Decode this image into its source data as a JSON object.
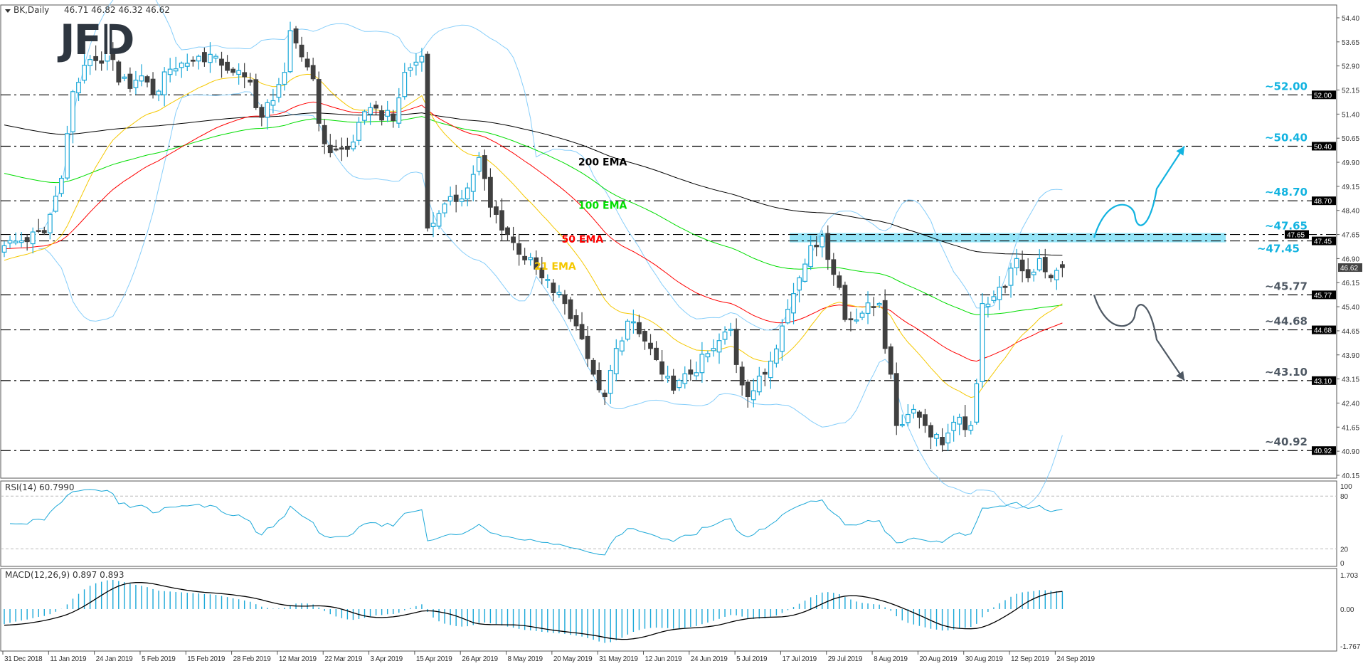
{
  "header": {
    "symbol": "BK,Daily",
    "ohlc": "46.71 46.82 46.32 46.62"
  },
  "logo": "JFD",
  "colors": {
    "bull": "#1ba8d8",
    "bear": "#404040",
    "bollinger": "#87cefa",
    "level_up": "#12b3e0",
    "level_down": "#4f5964",
    "zone": "#94e4f7",
    "rsi": "#1ba8d8",
    "macd_hist": "#1ba8d8",
    "macd_signal": "#000000"
  },
  "chart_data": [
    {
      "type": "candlestick",
      "title": "BK,Daily",
      "ylim": [
        40.15,
        54.4
      ],
      "y_ticks": [
        "54.40",
        "53.65",
        "52.90",
        "52.15",
        "51.40",
        "50.65",
        "49.90",
        "49.15",
        "48.40",
        "47.65",
        "46.90",
        "46.15",
        "45.40",
        "44.65",
        "43.90",
        "43.15",
        "42.40",
        "41.65",
        "40.90",
        "40.15"
      ],
      "x_labels": [
        "31 Dec 2018",
        "11 Jan 2019",
        "24 Jan 2019",
        "5 Feb 2019",
        "15 Feb 2019",
        "28 Feb 2019",
        "12 Mar 2019",
        "22 Mar 2019",
        "3 Apr 2019",
        "15 Apr 2019",
        "26 Apr 2019",
        "8 May 2019",
        "20 May 2019",
        "31 May 2019",
        "12 Jun 2019",
        "24 Jun 2019",
        "5 Jul 2019",
        "17 Jul 2019",
        "29 Jul 2019",
        "8 Aug 2019",
        "20 Aug 2019",
        "30 Aug 2019",
        "12 Sep 2019",
        "24 Sep 2019"
      ],
      "last_bar": {
        "open": 46.71,
        "high": 46.82,
        "low": 46.32,
        "close": 46.62
      },
      "close_path": [
        [
          "2018-12-31",
          47.3
        ],
        [
          "2019-01-09",
          47.7
        ],
        [
          "2019-01-15",
          49.4
        ],
        [
          "2019-01-17",
          52.1
        ],
        [
          "2019-01-22",
          53.1
        ],
        [
          "2019-01-29",
          53.1
        ],
        [
          "2019-01-30",
          52.4
        ],
        [
          "2019-02-06",
          52.4
        ],
        [
          "2019-02-08",
          52.0
        ],
        [
          "2019-02-11",
          52.8
        ],
        [
          "2019-02-18",
          53.2
        ],
        [
          "2019-02-23",
          53.2
        ],
        [
          "2019-02-28",
          52.7
        ],
        [
          "2019-03-04",
          52.4
        ],
        [
          "2019-03-06",
          51.6
        ],
        [
          "2019-03-08",
          51.3
        ],
        [
          "2019-03-13",
          52.7
        ],
        [
          "2019-03-15",
          54.0
        ],
        [
          "2019-03-19",
          52.5
        ],
        [
          "2019-03-20",
          51.3
        ],
        [
          "2019-03-23",
          50.2
        ],
        [
          "2019-03-28",
          50.3
        ],
        [
          "2019-04-03",
          51.6
        ],
        [
          "2019-04-09",
          51.2
        ],
        [
          "2019-04-12",
          52.7
        ],
        [
          "2019-04-16",
          53.2
        ],
        [
          "2019-04-17",
          49.4
        ],
        [
          "2019-04-18",
          47.85
        ],
        [
          "2019-04-21",
          48.3
        ],
        [
          "2019-04-27",
          49.1
        ],
        [
          "2019-05-01",
          50.05
        ],
        [
          "2019-05-04",
          48.5
        ],
        [
          "2019-05-09",
          47.4
        ],
        [
          "2019-05-17",
          46.3
        ],
        [
          "2019-05-23",
          45.5
        ],
        [
          "2019-05-27",
          44.4
        ],
        [
          "2019-05-29",
          43.3
        ],
        [
          "2019-06-01",
          42.6
        ],
        [
          "2019-06-04",
          44.1
        ],
        [
          "2019-06-07",
          44.95
        ],
        [
          "2019-06-13",
          44.1
        ],
        [
          "2019-06-16",
          43.3
        ],
        [
          "2019-06-20",
          42.8
        ],
        [
          "2019-06-24",
          43.3
        ],
        [
          "2019-06-29",
          44.1
        ],
        [
          "2019-07-04",
          44.7
        ],
        [
          "2019-07-05",
          43.6
        ],
        [
          "2019-07-08",
          42.6
        ],
        [
          "2019-07-12",
          43.3
        ],
        [
          "2019-07-17",
          44.8
        ],
        [
          "2019-07-21",
          46.3
        ],
        [
          "2019-07-24",
          47.3
        ],
        [
          "2019-07-27",
          47.6
        ],
        [
          "2019-07-31",
          46.0
        ],
        [
          "2019-08-02",
          45.0
        ],
        [
          "2019-08-09",
          45.5
        ],
        [
          "2019-08-11",
          44.1
        ],
        [
          "2019-08-12",
          43.3
        ],
        [
          "2019-08-14",
          41.7
        ],
        [
          "2019-08-18",
          42.2
        ],
        [
          "2019-08-21",
          41.7
        ],
        [
          "2019-08-25",
          41.1
        ],
        [
          "2019-08-28",
          41.8
        ],
        [
          "2019-08-31",
          41.7
        ],
        [
          "2019-09-03",
          43.0
        ],
        [
          "2019-09-04",
          45.5
        ],
        [
          "2019-09-10",
          46.0
        ],
        [
          "2019-09-13",
          46.9
        ],
        [
          "2019-09-16",
          46.3
        ],
        [
          "2019-09-20",
          46.9
        ],
        [
          "2019-09-22",
          46.3
        ],
        [
          "2019-09-26",
          46.62
        ]
      ],
      "emas": [
        {
          "period": 200,
          "label": "200 EMA",
          "color": "#000000",
          "start_level": 51.1,
          "label_date": "2019-05-26",
          "label_price": 49.8
        },
        {
          "period": 100,
          "label": "100 EMA",
          "color": "#00dd00",
          "start_level": 49.6,
          "label_date": "2019-05-26",
          "label_price": 48.45
        },
        {
          "period": 50,
          "label": "50 EMA",
          "color": "#ff0000",
          "start_level": 47.2,
          "label_date": "2019-05-22",
          "label_price": 47.4
        },
        {
          "period": 21,
          "label": "21 EMA",
          "color": "#f5c800",
          "start_level": 46.8,
          "label_date": "2019-05-15",
          "label_price": 46.55
        }
      ],
      "levels": [
        {
          "value": 52.0,
          "label": "~52.00",
          "box": "52.00",
          "tone": "up"
        },
        {
          "value": 50.4,
          "label": "~50.40",
          "box": "50.40",
          "tone": "up"
        },
        {
          "value": 48.7,
          "label": "~48.70",
          "box": "48.70",
          "tone": "up"
        },
        {
          "value": 47.65,
          "label": "~47.65",
          "box": "47.65",
          "tone": "up"
        },
        {
          "value": 47.45,
          "label": "~47.45",
          "box": "47.45",
          "tone": "up",
          "below": true
        },
        {
          "value": 45.77,
          "label": "~45.77",
          "box": "45.77",
          "tone": "down"
        },
        {
          "value": 44.68,
          "label": "~44.68",
          "box": "44.68",
          "tone": "down"
        },
        {
          "value": 43.1,
          "label": "~43.10",
          "box": "43.10",
          "tone": "down"
        },
        {
          "value": 40.92,
          "label": "~40.92",
          "box": "40.92",
          "tone": "down"
        }
      ],
      "current_price_box": "46.62",
      "zone": {
        "from": 47.45,
        "to": 47.65,
        "start_date": "2019-07-19"
      },
      "scenarios": [
        {
          "direction": "up",
          "points": [
            [
              47.55,
              0
            ],
            [
              48.7,
              1
            ],
            [
              47.75,
              2
            ],
            [
              50.4,
              3
            ]
          ]
        },
        {
          "direction": "down",
          "points": [
            [
              45.77,
              0
            ],
            [
              44.68,
              1
            ],
            [
              45.65,
              2
            ],
            [
              43.1,
              3
            ]
          ]
        }
      ]
    },
    {
      "type": "line",
      "title": "RSI(14) 60.7990",
      "ylim": [
        0,
        100
      ],
      "y_ticks": [
        "100",
        "80",
        "20",
        "0"
      ],
      "levels": [
        80,
        20
      ],
      "last_value": 60.799
    },
    {
      "type": "bar",
      "title": "MACD(12,26,9) 0.897 0.893",
      "ylim": [
        -1.767,
        1.703
      ],
      "y_ticks": [
        "1.703",
        "0.00",
        "-1.767"
      ],
      "last_main": 0.897,
      "last_signal": 0.893
    }
  ]
}
